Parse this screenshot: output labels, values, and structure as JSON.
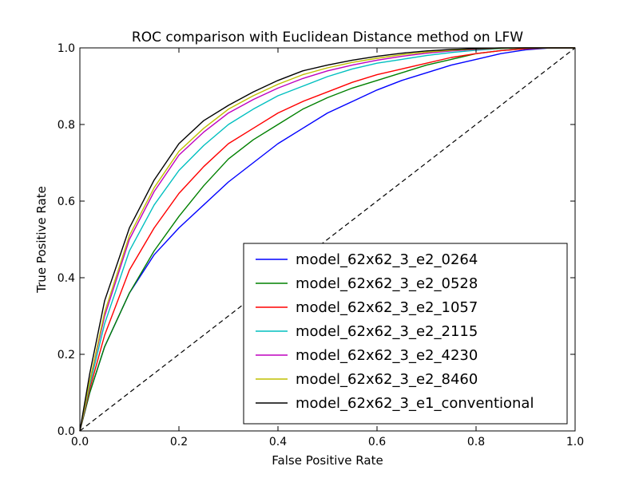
{
  "chart_data": {
    "type": "line",
    "title": "ROC comparison with Euclidean Distance method on LFW",
    "xlabel": "False Positive Rate",
    "ylabel": "True Positive Rate",
    "xlim": [
      0.0,
      1.0
    ],
    "ylim": [
      0.0,
      1.0
    ],
    "xticks": [
      "0.0",
      "0.2",
      "0.4",
      "0.6",
      "0.8",
      "1.0"
    ],
    "yticks": [
      "0.0",
      "0.2",
      "0.4",
      "0.6",
      "0.8",
      "1.0"
    ],
    "grid": false,
    "legend_position": "lower-right",
    "reference_line": {
      "style": "dashed",
      "color": "#000000",
      "x": [
        0.0,
        1.0
      ],
      "y": [
        0.0,
        1.0
      ]
    },
    "x": [
      0.0,
      0.02,
      0.05,
      0.1,
      0.15,
      0.2,
      0.25,
      0.3,
      0.35,
      0.4,
      0.45,
      0.5,
      0.55,
      0.6,
      0.65,
      0.7,
      0.75,
      0.8,
      0.85,
      0.9,
      0.95,
      1.0
    ],
    "series": [
      {
        "name": "model_62x62_3_e2_0264",
        "color": "#0000ff",
        "values": [
          0.0,
          0.1,
          0.22,
          0.36,
          0.46,
          0.53,
          0.59,
          0.65,
          0.7,
          0.75,
          0.79,
          0.83,
          0.86,
          0.89,
          0.915,
          0.935,
          0.955,
          0.97,
          0.985,
          0.995,
          1.0,
          1.0
        ]
      },
      {
        "name": "model_62x62_3_e2_0528",
        "color": "#008000",
        "values": [
          0.0,
          0.1,
          0.22,
          0.36,
          0.47,
          0.56,
          0.64,
          0.71,
          0.76,
          0.8,
          0.84,
          0.87,
          0.895,
          0.915,
          0.935,
          0.955,
          0.97,
          0.985,
          0.993,
          0.998,
          1.0,
          1.0
        ]
      },
      {
        "name": "model_62x62_3_e2_1057",
        "color": "#ff0000",
        "values": [
          0.0,
          0.11,
          0.25,
          0.42,
          0.53,
          0.62,
          0.69,
          0.75,
          0.79,
          0.83,
          0.86,
          0.885,
          0.91,
          0.93,
          0.945,
          0.96,
          0.975,
          0.985,
          0.993,
          0.998,
          1.0,
          1.0
        ]
      },
      {
        "name": "model_62x62_3_e2_2115",
        "color": "#00bfbf",
        "values": [
          0.0,
          0.12,
          0.28,
          0.47,
          0.59,
          0.68,
          0.745,
          0.8,
          0.84,
          0.875,
          0.9,
          0.925,
          0.945,
          0.96,
          0.97,
          0.98,
          0.988,
          0.994,
          0.998,
          1.0,
          1.0,
          1.0
        ]
      },
      {
        "name": "model_62x62_3_e2_4230",
        "color": "#bf00bf",
        "values": [
          0.0,
          0.13,
          0.3,
          0.5,
          0.625,
          0.72,
          0.78,
          0.83,
          0.865,
          0.895,
          0.92,
          0.94,
          0.955,
          0.968,
          0.978,
          0.986,
          0.992,
          0.996,
          0.999,
          1.0,
          1.0,
          1.0
        ]
      },
      {
        "name": "model_62x62_3_e2_8460",
        "color": "#bfbf00",
        "values": [
          0.0,
          0.13,
          0.31,
          0.51,
          0.635,
          0.73,
          0.79,
          0.84,
          0.875,
          0.905,
          0.93,
          0.948,
          0.962,
          0.973,
          0.982,
          0.989,
          0.994,
          0.997,
          0.999,
          1.0,
          1.0,
          1.0
        ]
      },
      {
        "name": "model_62x62_3_e1_conventional",
        "color": "#000000",
        "values": [
          0.0,
          0.15,
          0.34,
          0.53,
          0.655,
          0.75,
          0.81,
          0.85,
          0.885,
          0.915,
          0.94,
          0.955,
          0.968,
          0.978,
          0.986,
          0.992,
          0.996,
          0.998,
          1.0,
          1.0,
          1.0,
          1.0
        ]
      }
    ]
  }
}
